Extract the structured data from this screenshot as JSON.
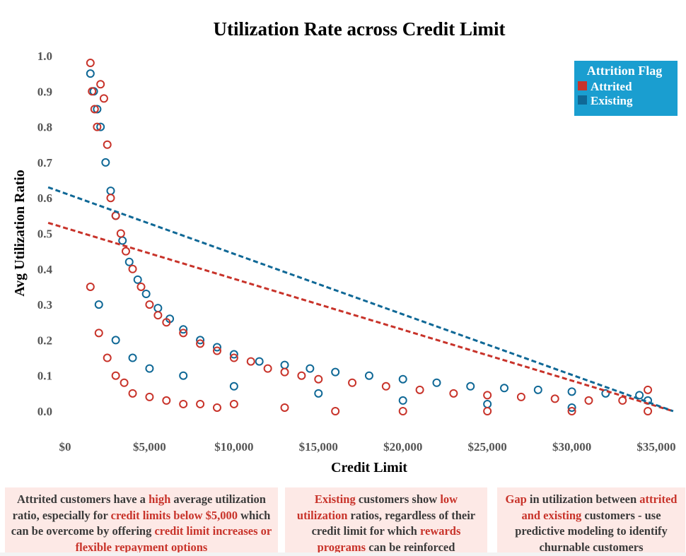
{
  "chart_data": {
    "type": "scatter",
    "title": "Utilization Rate across Credit Limit",
    "xlabel": "Credit Limit",
    "ylabel": "Avg Utilization Ratio",
    "xlim": [
      0,
      35000
    ],
    "ylim": [
      0,
      1.0
    ],
    "xticks": [
      "$0",
      "$5,000",
      "$10,000",
      "$15,000",
      "$20,000",
      "$25,000",
      "$30,000",
      "$35,000"
    ],
    "yticks": [
      "0.0",
      "0.1",
      "0.2",
      "0.3",
      "0.4",
      "0.5",
      "0.6",
      "0.7",
      "0.8",
      "0.9",
      "1.0"
    ],
    "legend": {
      "title": "Attrition Flag",
      "position": "top-right",
      "items": [
        {
          "label": "Attrited",
          "color": "#c8332a"
        },
        {
          "label": "Existing",
          "color": "#0f6896"
        }
      ]
    },
    "series": [
      {
        "name": "Attrited",
        "color": "#c8332a",
        "x": [
          1500,
          1600,
          1750,
          1900,
          2100,
          2300,
          2500,
          2700,
          3000,
          3300,
          3600,
          4000,
          4500,
          5000,
          5500,
          6000,
          7000,
          8000,
          9000,
          10000,
          11000,
          12000,
          13000,
          14000,
          15000,
          17000,
          19000,
          21000,
          23000,
          25000,
          27000,
          29000,
          31000,
          33000,
          34500,
          1500,
          2000,
          2500,
          3000,
          3500,
          4000,
          5000,
          6000,
          7000,
          8000,
          9000,
          10000,
          13000,
          16000,
          20000,
          25000,
          30000,
          34500
        ],
        "y": [
          0.98,
          0.9,
          0.85,
          0.8,
          0.92,
          0.88,
          0.75,
          0.6,
          0.55,
          0.5,
          0.45,
          0.4,
          0.35,
          0.3,
          0.27,
          0.25,
          0.22,
          0.19,
          0.17,
          0.15,
          0.14,
          0.12,
          0.11,
          0.1,
          0.09,
          0.08,
          0.07,
          0.06,
          0.05,
          0.045,
          0.04,
          0.035,
          0.03,
          0.03,
          0.06,
          0.35,
          0.22,
          0.15,
          0.1,
          0.08,
          0.05,
          0.04,
          0.03,
          0.02,
          0.02,
          0.01,
          0.02,
          0.01,
          0.0,
          0.0,
          0.0,
          0.0,
          0.0
        ],
        "trend": {
          "x": [
            -1000,
            36000
          ],
          "y": [
            0.53,
            0.0
          ]
        }
      },
      {
        "name": "Existing",
        "color": "#0f6896",
        "x": [
          1500,
          1700,
          1900,
          2100,
          2400,
          2700,
          3000,
          3400,
          3800,
          4300,
          4800,
          5500,
          6200,
          7000,
          8000,
          9000,
          10000,
          11500,
          13000,
          14500,
          16000,
          18000,
          20000,
          22000,
          24000,
          26000,
          28000,
          30000,
          32000,
          34000,
          34500,
          2000,
          3000,
          4000,
          5000,
          7000,
          10000,
          15000,
          20000,
          25000,
          30000
        ],
        "y": [
          0.95,
          0.9,
          0.85,
          0.8,
          0.7,
          0.62,
          0.55,
          0.48,
          0.42,
          0.37,
          0.33,
          0.29,
          0.26,
          0.23,
          0.2,
          0.18,
          0.16,
          0.14,
          0.13,
          0.12,
          0.11,
          0.1,
          0.09,
          0.08,
          0.07,
          0.065,
          0.06,
          0.055,
          0.05,
          0.045,
          0.03,
          0.3,
          0.2,
          0.15,
          0.12,
          0.1,
          0.07,
          0.05,
          0.03,
          0.02,
          0.01
        ],
        "trend": {
          "x": [
            -1000,
            36000
          ],
          "y": [
            0.63,
            0.0
          ]
        }
      }
    ]
  },
  "notes": {
    "note1": {
      "parts": [
        {
          "text": "Attrited customers have a ",
          "hl": false
        },
        {
          "text": "high",
          "hl": true
        },
        {
          "text": " average utilization ratio, especially for ",
          "hl": false
        },
        {
          "text": "credit limits below $5,000",
          "hl": true
        },
        {
          "text": " which can be overcome by offering ",
          "hl": false
        },
        {
          "text": "credit limit increases or flexible repayment options",
          "hl": true
        }
      ]
    },
    "note2": {
      "parts": [
        {
          "text": "Existing",
          "hl": true
        },
        {
          "text": " customers show ",
          "hl": false
        },
        {
          "text": "low utilization",
          "hl": true
        },
        {
          "text": " ratios, regardless of their credit limit for which ",
          "hl": false
        },
        {
          "text": "rewards programs",
          "hl": true
        },
        {
          "text": " can be reinforced",
          "hl": false
        }
      ]
    },
    "note3": {
      "parts": [
        {
          "text": "Gap",
          "hl": true
        },
        {
          "text": " in utilization between ",
          "hl": false
        },
        {
          "text": "attrited and existing",
          "hl": true
        },
        {
          "text": " customers - use predictive modeling to identify churnable customers",
          "hl": false
        }
      ]
    }
  }
}
